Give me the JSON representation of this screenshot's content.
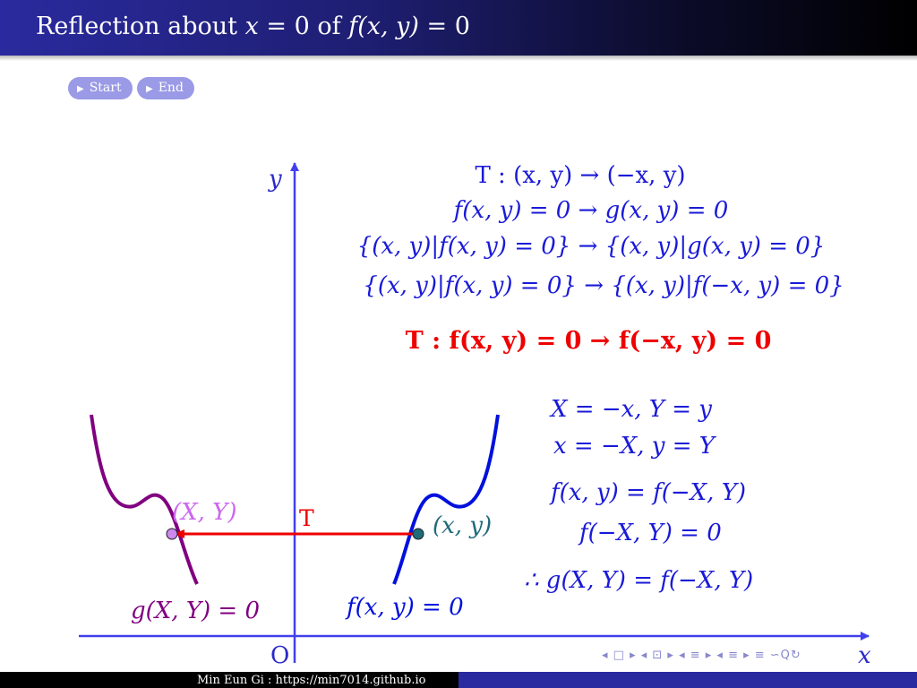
{
  "slide": {
    "title": "Reflection about x = 0 of f(x, y) = 0",
    "title_parts": {
      "pre": "Reflection about ",
      "x": "x",
      "eq0": " = 0 of ",
      "f": "f",
      "args": "(x, y)",
      "tail": " = 0"
    }
  },
  "buttons": {
    "start": "Start",
    "end": "End"
  },
  "equations": {
    "line1": "T : (x, y) → (−x, y)",
    "line2": "f(x, y) = 0 → g(x, y) = 0",
    "line3": "{(x, y)|f(x, y) = 0} → {(x, y)|g(x, y) = 0}",
    "line4": "{(x, y)|f(x, y) = 0} → {(x, y)|f(−x, y) = 0}",
    "result": "T : f(x, y) = 0 → f(−x, y) = 0",
    "sub1": "X = −x,   Y = y",
    "sub2": "x = −X,   y = Y",
    "sub3": "f(x, y) = f(−X, Y)",
    "sub4": "f(−X, Y) = 0",
    "sub5": "∴ g(X, Y) = f(−X, Y)"
  },
  "graph": {
    "y_axis_label": "y",
    "x_axis_label": "x",
    "origin_label": "O",
    "arrow_label": "T",
    "point_reflected_label": "(X, Y)",
    "point_original_label": "(x, y)",
    "curve_reflected_label": "g(X, Y) = 0",
    "curve_original_label": "f(x, y) = 0",
    "colors": {
      "axis": "#4040ee",
      "original_curve": "#0010dd",
      "reflected_curve": "#800080",
      "arrow": "#ee0000",
      "reflected_point": "#cc88ee",
      "original_point": "#1f6b7a"
    }
  },
  "footer": {
    "credit": "Min Eun Gi : https://min7014.github.io"
  },
  "beamer_nav": "◂ □ ▸ ◂ ⊡ ▸ ◂ ≡ ▸ ◂ ≡ ▸   ≡ ∽Q↻"
}
